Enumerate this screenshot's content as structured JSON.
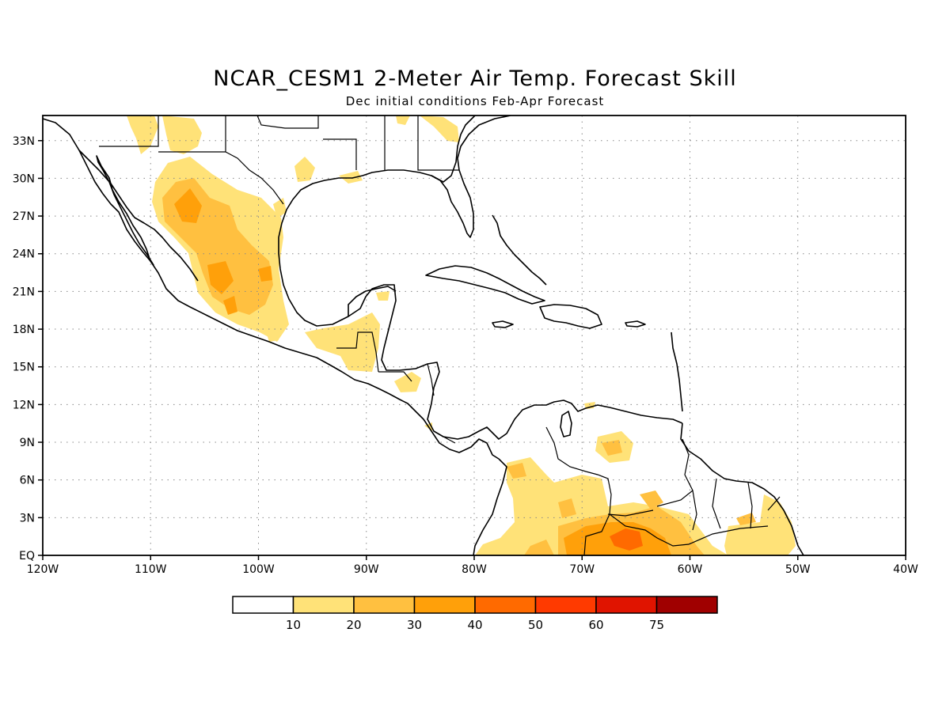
{
  "title": "NCAR_CESM1 2-Meter Air Temp. Forecast Skill",
  "subtitle": "Dec initial conditions  Feb-Apr Forecast",
  "map": {
    "lon_range": [
      -120,
      -40
    ],
    "lat_range": [
      0,
      35
    ],
    "lon_ticks": [
      "120W",
      "110W",
      "100W",
      "90W",
      "80W",
      "70W",
      "60W",
      "50W",
      "40W"
    ],
    "lat_ticks": [
      "EQ",
      "3N",
      "6N",
      "9N",
      "12N",
      "15N",
      "18N",
      "21N",
      "24N",
      "27N",
      "30N",
      "33N"
    ],
    "grid": "dotted"
  },
  "legend": {
    "colors": [
      "#ffffff",
      "#ffe278",
      "#ffc040",
      "#ffa00a",
      "#ff6a00",
      "#ff3a00",
      "#e01400",
      "#a00000"
    ],
    "labels": [
      "10",
      "20",
      "30",
      "40",
      "50",
      "60",
      "75"
    ]
  }
}
